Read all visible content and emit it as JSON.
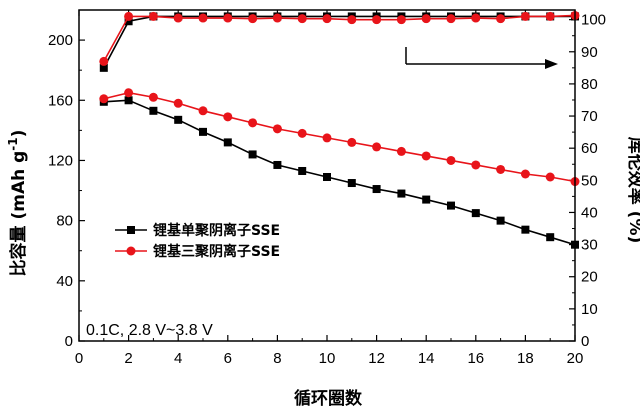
{
  "chart_data": {
    "type": "line",
    "xlabel": "循环圈数",
    "ylabel_left": "比容量 (mAh g-1)",
    "ylabel_left_parts": {
      "main": "比容量 (mAh g",
      "sup": "-1",
      "close": ")"
    },
    "ylabel_right": "库伦效率 (%)",
    "annotation": "0.1C, 2.8 V~3.8 V",
    "x": [
      1,
      2,
      3,
      4,
      5,
      6,
      7,
      8,
      9,
      10,
      11,
      12,
      13,
      14,
      15,
      16,
      17,
      18,
      19,
      20
    ],
    "xlim": [
      0,
      20
    ],
    "xticks": [
      0,
      2,
      4,
      6,
      8,
      10,
      12,
      14,
      16,
      18,
      20
    ],
    "ylim_left": [
      0,
      220
    ],
    "yticks_left": [
      0,
      40,
      80,
      120,
      160,
      200
    ],
    "ylim_right": [
      0,
      103
    ],
    "yticks_right": [
      0,
      10,
      20,
      30,
      40,
      50,
      60,
      70,
      80,
      90,
      100
    ],
    "legend_position": "center-left",
    "colors": {
      "black_series": "#000000",
      "red_series": "#e8141a"
    },
    "series": [
      {
        "name": "锂基单聚阴离子SSE",
        "color": "#000000",
        "marker": "square",
        "capacity": [
          159,
          160,
          153,
          147,
          139,
          132,
          124,
          117,
          113,
          109,
          105,
          101,
          98,
          94,
          90,
          85,
          80,
          74,
          69,
          64
        ],
        "efficiency": [
          85,
          99.5,
          101,
          101,
          101,
          101,
          101,
          101,
          101,
          101,
          101,
          101,
          101,
          101,
          101,
          101,
          101,
          101,
          101,
          101
        ]
      },
      {
        "name": "锂基三聚阴离子SSE",
        "color": "#e8141a",
        "marker": "circle",
        "capacity": [
          161,
          165,
          162,
          158,
          153,
          149,
          145,
          141,
          138,
          135,
          132,
          129,
          126,
          123,
          120,
          117,
          114,
          111,
          109,
          106
        ],
        "efficiency": [
          87,
          101,
          101,
          100.5,
          100.5,
          100.5,
          100.3,
          100.5,
          100.3,
          100.3,
          100,
          100,
          100,
          100.3,
          100.3,
          100.5,
          100.3,
          101,
          101,
          101.3
        ]
      }
    ]
  }
}
